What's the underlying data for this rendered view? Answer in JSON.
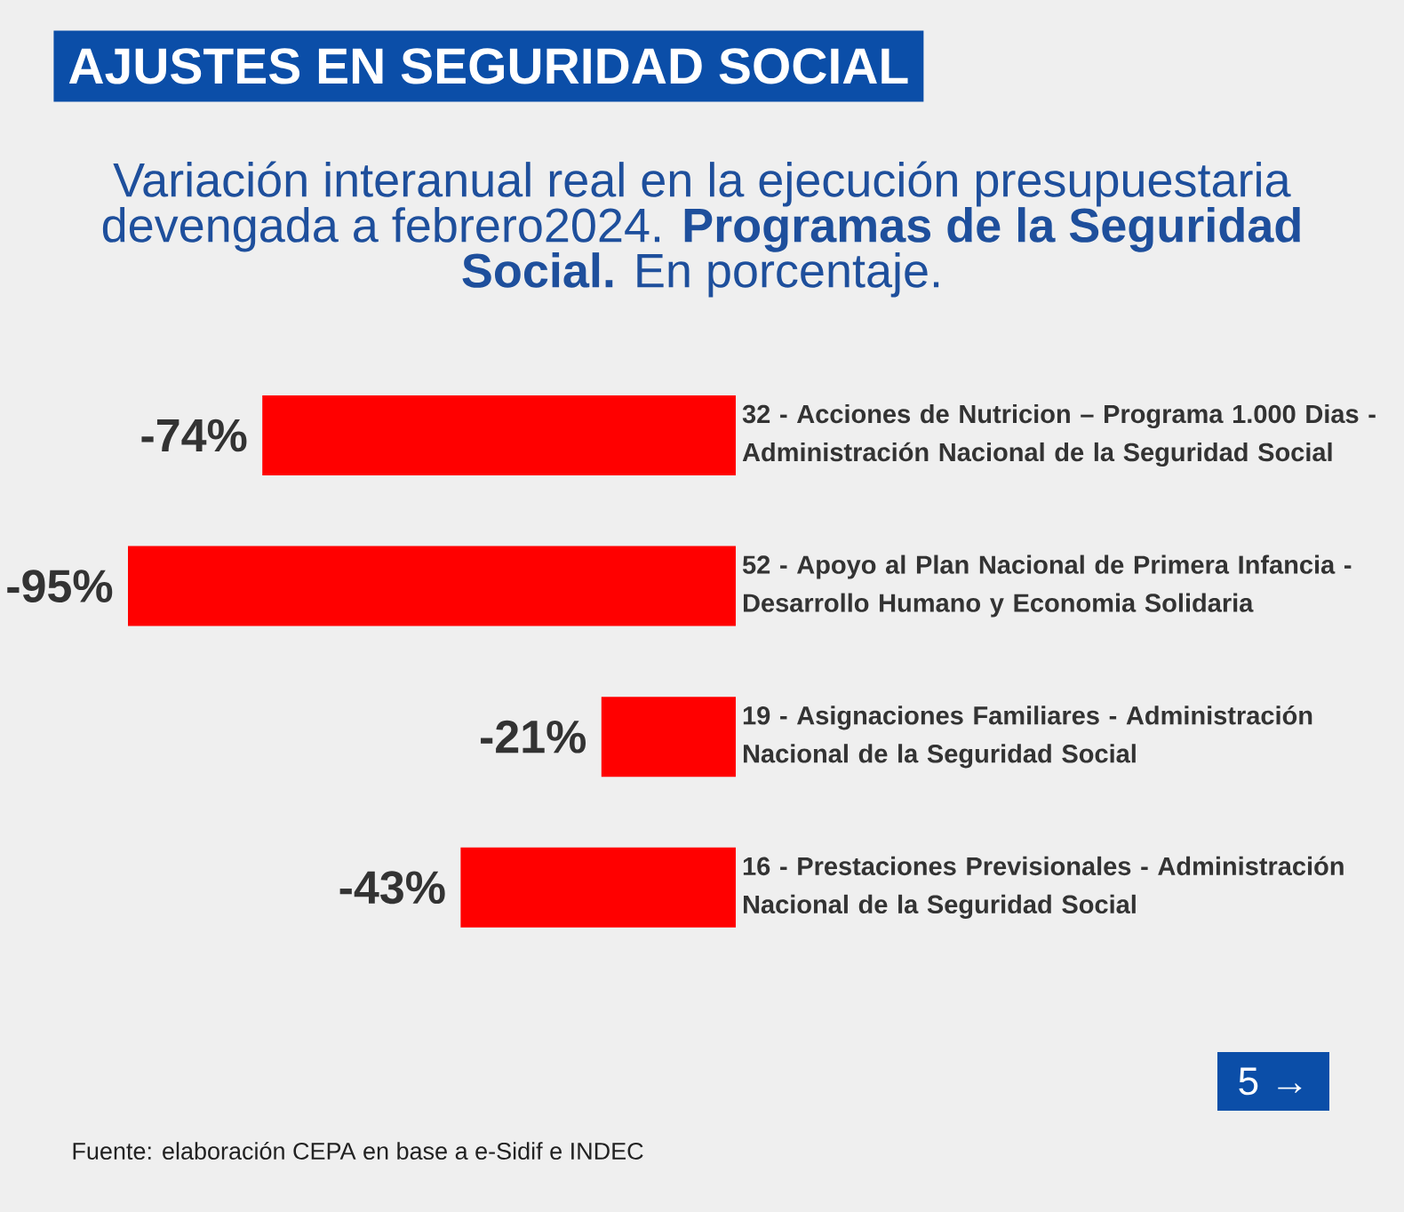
{
  "chart_data": {
    "type": "bar",
    "orientation": "horizontal",
    "title": "AJUSTES EN SEGURIDAD SOCIAL",
    "subtitle": "Variación interanual real en la ejecución presupuestaria devengada a febrero2024. **Programas de la Seguridad Social.** En porcentaje.",
    "categories": [
      "32 - Acciones de Nutricion – Programa 1.000 Dias - Administración Nacional de la Seguridad Social",
      "52 - Apoyo al Plan Nacional de Primera Infancia - Desarrollo Humano y Economia Solidaria",
      "19 - Asignaciones Familiares - Administración Nacional de la Seguridad Social",
      "16 - Prestaciones Previsionales - Administración Nacional de la Seguridad Social"
    ],
    "values": [
      -74,
      -95,
      -21,
      -43
    ],
    "value_labels": [
      "-74%",
      "-95%",
      "-21%",
      "-43%"
    ],
    "color": "#ff0000",
    "tick_labels": "y",
    "annotations": [
      "Fuente: elaboración CEPA en base a e-Sidif e INDEC",
      "5 →"
    ]
  }
}
